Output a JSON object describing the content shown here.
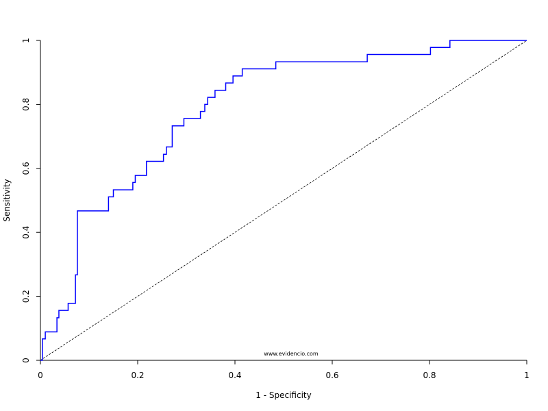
{
  "chart_data": {
    "type": "line",
    "title": "",
    "xlabel": "1 - Specificity",
    "ylabel": "Sensitivity",
    "xlim": [
      0,
      1
    ],
    "ylim": [
      0,
      1
    ],
    "x_ticks": [
      "0",
      "0.2",
      "0.4",
      "0.6",
      "0.8",
      "1"
    ],
    "y_ticks": [
      "0",
      "0.2",
      "0.4",
      "0.6",
      "0.8",
      "1"
    ],
    "x_tick_values": [
      0,
      0.2,
      0.4,
      0.6,
      0.8,
      1
    ],
    "y_tick_values": [
      0,
      0.2,
      0.4,
      0.6,
      0.8,
      1
    ],
    "grid": false,
    "series": [
      {
        "color": "#0000ff",
        "step": true,
        "x": [
          0,
          0.004,
          0.004,
          0.01,
          0.01,
          0.034,
          0.034,
          0.038,
          0.038,
          0.057,
          0.057,
          0.072,
          0.072,
          0.076,
          0.076,
          0.14,
          0.14,
          0.15,
          0.15,
          0.19,
          0.19,
          0.195,
          0.195,
          0.218,
          0.218,
          0.253,
          0.253,
          0.259,
          0.259,
          0.271,
          0.271,
          0.295,
          0.295,
          0.329,
          0.329,
          0.338,
          0.338,
          0.344,
          0.344,
          0.359,
          0.359,
          0.381,
          0.381,
          0.396,
          0.396,
          0.415,
          0.415,
          0.484,
          0.484,
          0.672,
          0.672,
          0.802,
          0.802,
          0.842,
          0.842,
          1
        ],
        "y": [
          0,
          0,
          0.067,
          0.067,
          0.089,
          0.089,
          0.133,
          0.133,
          0.156,
          0.156,
          0.178,
          0.178,
          0.267,
          0.267,
          0.467,
          0.467,
          0.511,
          0.511,
          0.533,
          0.533,
          0.556,
          0.556,
          0.578,
          0.578,
          0.622,
          0.622,
          0.644,
          0.644,
          0.667,
          0.667,
          0.733,
          0.733,
          0.756,
          0.756,
          0.778,
          0.778,
          0.8,
          0.8,
          0.822,
          0.822,
          0.844,
          0.844,
          0.867,
          0.867,
          0.889,
          0.889,
          0.911,
          0.911,
          0.933,
          0.933,
          0.956,
          0.956,
          0.978,
          0.978,
          1,
          1
        ]
      }
    ],
    "reference_line": {
      "x": [
        0,
        1
      ],
      "y": [
        0,
        1
      ],
      "style": "dashed",
      "color": "#000000"
    }
  },
  "watermark": "www.evidencio.com"
}
